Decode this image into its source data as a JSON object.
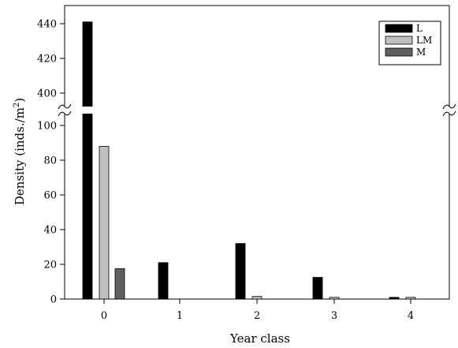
{
  "chart_data": {
    "type": "bar",
    "xlabel": "Year class",
    "ylabel": "Density (inds./m2)",
    "ylabel_main": "Density  (inds./m",
    "ylabel_sup": "2",
    "ylabel_end": ")",
    "categories": [
      "0",
      "1",
      "2",
      "3",
      "4"
    ],
    "series": [
      {
        "name": "L",
        "values": [
          441,
          21,
          32,
          12.5,
          1
        ],
        "color": "#000000"
      },
      {
        "name": "LM",
        "values": [
          88,
          0,
          1.5,
          1,
          1
        ],
        "color": "#c0c0c0"
      },
      {
        "name": "M",
        "values": [
          17.5,
          0,
          0,
          0,
          0
        ],
        "color": "#606060"
      }
    ],
    "y_axis_break": true,
    "ylim_lower": [
      0,
      100
    ],
    "ylim_upper": [
      390,
      450
    ],
    "yticks_lower": [
      "0",
      "20",
      "40",
      "60",
      "80",
      "100"
    ],
    "yticks_upper": [
      "400",
      "420",
      "440"
    ],
    "legend_position": "top-right",
    "grid": false
  }
}
